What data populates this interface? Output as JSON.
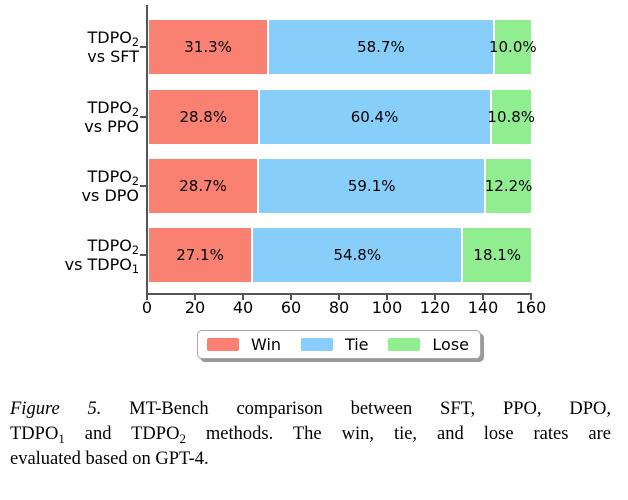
{
  "chart_data": {
    "type": "bar",
    "orientation": "horizontal",
    "stacked": true,
    "grid": false,
    "xlim": [
      0,
      160
    ],
    "xticks": [
      0,
      20,
      40,
      60,
      80,
      100,
      120,
      140,
      160
    ],
    "total_per_bar": 160,
    "legend_position": "bottom",
    "categories": [
      {
        "name": "TDPO2 vs SFT",
        "lines": [
          [
            {
              "t": "TDPO"
            },
            {
              "t": "2",
              "sub": true
            }
          ],
          [
            {
              "t": "vs SFT"
            }
          ]
        ]
      },
      {
        "name": "TDPO2 vs PPO",
        "lines": [
          [
            {
              "t": "TDPO"
            },
            {
              "t": "2",
              "sub": true
            }
          ],
          [
            {
              "t": "vs PPO"
            }
          ]
        ]
      },
      {
        "name": "TDPO2 vs DPO",
        "lines": [
          [
            {
              "t": "TDPO"
            },
            {
              "t": "2",
              "sub": true
            }
          ],
          [
            {
              "t": "vs DPO"
            }
          ]
        ]
      },
      {
        "name": "TDPO2 vs TDPO1",
        "lines": [
          [
            {
              "t": "TDPO"
            },
            {
              "t": "2",
              "sub": true
            }
          ],
          [
            {
              "t": "vs TDPO"
            },
            {
              "t": "1",
              "sub": true
            }
          ]
        ]
      }
    ],
    "series": [
      {
        "name": "Win",
        "color": "#FA8072",
        "values": [
          31.3,
          28.8,
          28.7,
          27.1
        ],
        "labels": [
          "31.3%",
          "28.8%",
          "28.7%",
          "27.1%"
        ]
      },
      {
        "name": "Tie",
        "color": "#87CEFA",
        "values": [
          58.7,
          60.4,
          59.1,
          54.8
        ],
        "labels": [
          "58.7%",
          "60.4%",
          "59.1%",
          "54.8%"
        ]
      },
      {
        "name": "Lose",
        "color": "#90EE90",
        "values": [
          10.0,
          10.8,
          12.2,
          18.1
        ],
        "labels": [
          "10.0%",
          "10.8%",
          "12.2%",
          "18.1%"
        ]
      }
    ]
  },
  "caption": {
    "lines": [
      [
        {
          "t": "Figure 5.",
          "italic": true
        },
        {
          "t": " MT-Bench comparison between SFT, PPO, DPO,"
        }
      ],
      [
        {
          "t": "TDPO"
        },
        {
          "t": "1",
          "sub": true
        },
        {
          "t": " and TDPO"
        },
        {
          "t": "2",
          "sub": true
        },
        {
          "t": " methods. The win, tie, and lose rates are"
        }
      ],
      [
        {
          "t": "evaluated based on GPT-4."
        }
      ]
    ]
  }
}
